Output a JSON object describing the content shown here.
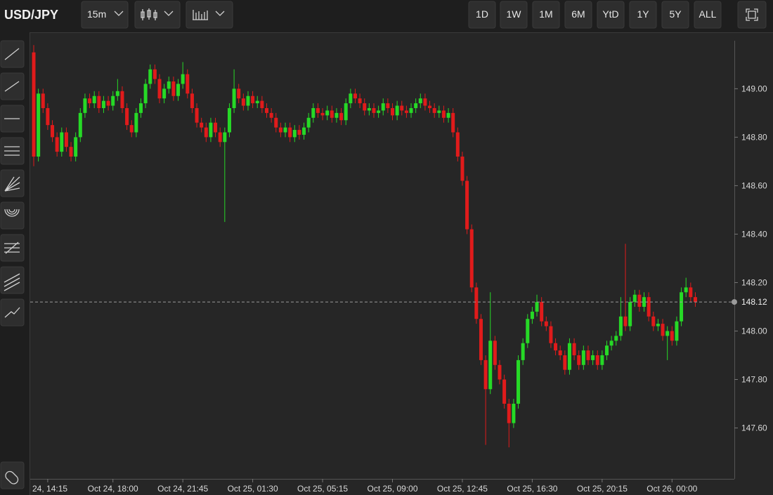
{
  "header": {
    "symbol": "USD/JPY",
    "interval": "15m",
    "ranges": [
      "1D",
      "1W",
      "1M",
      "6M",
      "YtD",
      "1Y",
      "5Y",
      "ALL"
    ]
  },
  "chart_data": {
    "type": "candlestick",
    "up_color": "#26d926",
    "down_color": "#e01b1b",
    "ylim": [
      147.39,
      149.23
    ],
    "yticks": [
      {
        "value": 147.6,
        "label": "147.60"
      },
      {
        "value": 147.8,
        "label": "147.80"
      },
      {
        "value": 148.0,
        "label": "148.00"
      },
      {
        "value": 148.2,
        "label": "148.20"
      },
      {
        "value": 148.4,
        "label": "148.40"
      },
      {
        "value": 148.6,
        "label": "148.60"
      },
      {
        "value": 148.8,
        "label": "148.80"
      },
      {
        "value": 149.0,
        "label": "149.00"
      }
    ],
    "xticks": [
      {
        "value": 3,
        "label": "24, 14:15"
      },
      {
        "value": 17,
        "label": "Oct 24, 18:00"
      },
      {
        "value": 32,
        "label": "Oct 24, 21:45"
      },
      {
        "value": 47,
        "label": "Oct 25, 01:30"
      },
      {
        "value": 62,
        "label": "Oct 25, 05:15"
      },
      {
        "value": 77,
        "label": "Oct 25, 09:00"
      },
      {
        "value": 92,
        "label": "Oct 25, 12:45"
      },
      {
        "value": 107,
        "label": "Oct 25, 16:30"
      },
      {
        "value": 122,
        "label": "Oct 25, 20:15"
      },
      {
        "value": 137,
        "label": "Oct 26, 00:00"
      }
    ],
    "last_price": 148.12,
    "candles": [
      [
        149.15,
        149.18,
        148.68,
        148.72
      ],
      [
        148.72,
        149.0,
        148.7,
        148.98
      ],
      [
        148.98,
        149.0,
        148.9,
        148.92
      ],
      [
        148.92,
        148.94,
        148.83,
        148.85
      ],
      [
        148.85,
        148.87,
        148.78,
        148.8
      ],
      [
        148.8,
        148.82,
        148.72,
        148.74
      ],
      [
        148.74,
        148.84,
        148.72,
        148.82
      ],
      [
        148.82,
        148.84,
        148.74,
        148.76
      ],
      [
        148.76,
        148.78,
        148.7,
        148.72
      ],
      [
        148.72,
        148.82,
        148.7,
        148.8
      ],
      [
        148.8,
        148.92,
        148.78,
        148.9
      ],
      [
        148.9,
        148.98,
        148.88,
        148.96
      ],
      [
        148.96,
        148.98,
        148.92,
        148.94
      ],
      [
        148.94,
        148.99,
        148.92,
        148.97
      ],
      [
        148.97,
        148.99,
        148.9,
        148.92
      ],
      [
        148.92,
        148.97,
        148.9,
        148.95
      ],
      [
        148.95,
        148.97,
        148.91,
        148.93
      ],
      [
        148.93,
        148.99,
        148.91,
        148.97
      ],
      [
        148.97,
        149.04,
        148.95,
        148.99
      ],
      [
        148.99,
        149.01,
        148.9,
        148.92
      ],
      [
        148.92,
        148.94,
        148.83,
        148.85
      ],
      [
        148.85,
        148.87,
        148.8,
        148.82
      ],
      [
        148.82,
        148.92,
        148.8,
        148.9
      ],
      [
        148.9,
        148.96,
        148.88,
        148.94
      ],
      [
        148.94,
        149.04,
        148.92,
        149.02
      ],
      [
        149.02,
        149.1,
        149.0,
        149.08
      ],
      [
        149.08,
        149.1,
        149.02,
        149.04
      ],
      [
        149.04,
        149.06,
        148.94,
        148.96
      ],
      [
        148.96,
        149.02,
        148.94,
        149.0
      ],
      [
        149.0,
        149.05,
        148.98,
        149.03
      ],
      [
        149.03,
        149.05,
        148.95,
        148.97
      ],
      [
        148.97,
        149.04,
        148.95,
        149.02
      ],
      [
        149.02,
        149.11,
        149.0,
        149.06
      ],
      [
        149.06,
        149.08,
        148.96,
        148.98
      ],
      [
        148.98,
        149.0,
        148.9,
        148.92
      ],
      [
        148.92,
        148.94,
        148.84,
        148.86
      ],
      [
        148.86,
        148.88,
        148.82,
        148.84
      ],
      [
        148.84,
        148.86,
        148.78,
        148.8
      ],
      [
        148.8,
        148.88,
        148.78,
        148.86
      ],
      [
        148.86,
        148.88,
        148.8,
        148.82
      ],
      [
        148.82,
        148.84,
        148.76,
        148.78
      ],
      [
        148.78,
        148.84,
        148.45,
        148.82
      ],
      [
        148.82,
        148.94,
        148.8,
        148.92
      ],
      [
        148.92,
        149.08,
        148.9,
        149.0
      ],
      [
        149.0,
        149.02,
        148.94,
        148.96
      ],
      [
        148.96,
        148.98,
        148.91,
        148.93
      ],
      [
        148.93,
        148.99,
        148.91,
        148.97
      ],
      [
        148.97,
        148.99,
        148.92,
        148.94
      ],
      [
        148.94,
        148.97,
        148.92,
        148.95
      ],
      [
        148.95,
        148.97,
        148.9,
        148.92
      ],
      [
        148.92,
        148.94,
        148.88,
        148.9
      ],
      [
        148.9,
        148.92,
        148.86,
        148.88
      ],
      [
        148.88,
        148.9,
        148.82,
        148.84
      ],
      [
        148.84,
        148.86,
        148.8,
        148.82
      ],
      [
        148.82,
        148.86,
        148.8,
        148.84
      ],
      [
        148.84,
        148.86,
        148.78,
        148.8
      ],
      [
        148.8,
        148.85,
        148.78,
        148.83
      ],
      [
        148.83,
        148.85,
        148.79,
        148.81
      ],
      [
        148.81,
        148.86,
        148.79,
        148.84
      ],
      [
        148.84,
        148.9,
        148.82,
        148.88
      ],
      [
        148.88,
        148.94,
        148.86,
        148.92
      ],
      [
        148.92,
        148.94,
        148.88,
        148.9
      ],
      [
        148.9,
        148.92,
        148.87,
        148.89
      ],
      [
        148.89,
        148.93,
        148.87,
        148.91
      ],
      [
        148.91,
        148.93,
        148.86,
        148.88
      ],
      [
        148.88,
        148.92,
        148.86,
        148.9
      ],
      [
        148.9,
        148.92,
        148.85,
        148.87
      ],
      [
        148.87,
        148.96,
        148.85,
        148.94
      ],
      [
        148.94,
        149.0,
        148.92,
        148.98
      ],
      [
        148.98,
        149.0,
        148.94,
        148.96
      ],
      [
        148.96,
        148.98,
        148.92,
        148.94
      ],
      [
        148.94,
        148.96,
        148.89,
        148.91
      ],
      [
        148.91,
        148.94,
        148.89,
        148.92
      ],
      [
        148.92,
        148.94,
        148.88,
        148.9
      ],
      [
        148.9,
        148.93,
        148.88,
        148.91
      ],
      [
        148.91,
        148.96,
        148.89,
        148.94
      ],
      [
        148.94,
        148.96,
        148.9,
        148.92
      ],
      [
        148.92,
        148.94,
        148.87,
        148.89
      ],
      [
        148.89,
        148.95,
        148.87,
        148.93
      ],
      [
        148.93,
        148.95,
        148.89,
        148.91
      ],
      [
        148.91,
        148.93,
        148.88,
        148.9
      ],
      [
        148.9,
        148.94,
        148.88,
        148.92
      ],
      [
        148.92,
        148.96,
        148.9,
        148.94
      ],
      [
        148.94,
        148.98,
        148.92,
        148.96
      ],
      [
        148.96,
        148.98,
        148.91,
        148.93
      ],
      [
        148.93,
        148.95,
        148.9,
        148.92
      ],
      [
        148.92,
        148.94,
        148.88,
        148.9
      ],
      [
        148.9,
        148.93,
        148.88,
        148.91
      ],
      [
        148.91,
        148.93,
        148.86,
        148.88
      ],
      [
        148.88,
        148.92,
        148.86,
        148.9
      ],
      [
        148.9,
        148.92,
        148.8,
        148.82
      ],
      [
        148.82,
        148.84,
        148.7,
        148.72
      ],
      [
        148.72,
        148.74,
        148.6,
        148.62
      ],
      [
        148.62,
        148.64,
        148.4,
        148.42
      ],
      [
        148.42,
        148.44,
        148.16,
        148.18
      ],
      [
        148.18,
        148.2,
        148.03,
        148.05
      ],
      [
        148.05,
        148.07,
        147.86,
        147.88
      ],
      [
        147.88,
        147.9,
        147.53,
        147.76
      ],
      [
        147.76,
        148.16,
        147.74,
        147.96
      ],
      [
        147.96,
        147.98,
        147.84,
        147.86
      ],
      [
        147.86,
        147.88,
        147.78,
        147.8
      ],
      [
        147.8,
        147.82,
        147.68,
        147.7
      ],
      [
        147.7,
        147.72,
        147.52,
        147.62
      ],
      [
        147.62,
        147.72,
        147.6,
        147.7
      ],
      [
        147.7,
        147.9,
        147.68,
        147.88
      ],
      [
        147.88,
        147.97,
        147.86,
        147.95
      ],
      [
        147.95,
        148.07,
        147.93,
        148.05
      ],
      [
        148.05,
        148.1,
        148.03,
        148.08
      ],
      [
        148.08,
        148.15,
        148.06,
        148.12
      ],
      [
        148.12,
        148.14,
        148.02,
        148.04
      ],
      [
        148.04,
        148.06,
        148.0,
        148.02
      ],
      [
        148.02,
        148.04,
        147.93,
        147.95
      ],
      [
        147.95,
        147.97,
        147.9,
        147.92
      ],
      [
        147.92,
        147.94,
        147.88,
        147.9
      ],
      [
        147.9,
        147.92,
        147.82,
        147.84
      ],
      [
        147.84,
        147.97,
        147.82,
        147.95
      ],
      [
        147.95,
        147.97,
        147.88,
        147.9
      ],
      [
        147.9,
        147.92,
        147.84,
        147.86
      ],
      [
        147.86,
        147.94,
        147.84,
        147.92
      ],
      [
        147.92,
        147.94,
        147.86,
        147.88
      ],
      [
        147.88,
        147.92,
        147.86,
        147.9
      ],
      [
        147.9,
        147.92,
        147.84,
        147.86
      ],
      [
        147.86,
        147.92,
        147.84,
        147.9
      ],
      [
        147.9,
        147.96,
        147.88,
        147.94
      ],
      [
        147.94,
        147.98,
        147.92,
        147.96
      ],
      [
        147.96,
        148.0,
        147.94,
        147.98
      ],
      [
        147.98,
        148.14,
        147.96,
        148.06
      ],
      [
        148.06,
        148.36,
        148.0,
        148.02
      ],
      [
        148.02,
        148.14,
        148.0,
        148.12
      ],
      [
        148.12,
        148.17,
        148.1,
        148.15
      ],
      [
        148.15,
        148.17,
        148.08,
        148.1
      ],
      [
        148.1,
        148.16,
        148.08,
        148.14
      ],
      [
        148.14,
        148.16,
        148.04,
        148.06
      ],
      [
        148.06,
        148.08,
        148.0,
        148.02
      ],
      [
        148.02,
        148.05,
        148.0,
        148.03
      ],
      [
        148.03,
        148.05,
        147.96,
        147.98
      ],
      [
        147.98,
        148.02,
        147.88,
        148.0
      ],
      [
        148.0,
        148.02,
        147.94,
        147.96
      ],
      [
        147.96,
        148.06,
        147.94,
        148.04
      ],
      [
        148.04,
        148.18,
        148.02,
        148.16
      ],
      [
        148.16,
        148.22,
        148.14,
        148.18
      ],
      [
        148.18,
        148.2,
        148.12,
        148.14
      ],
      [
        148.14,
        148.16,
        148.1,
        148.12
      ]
    ]
  }
}
